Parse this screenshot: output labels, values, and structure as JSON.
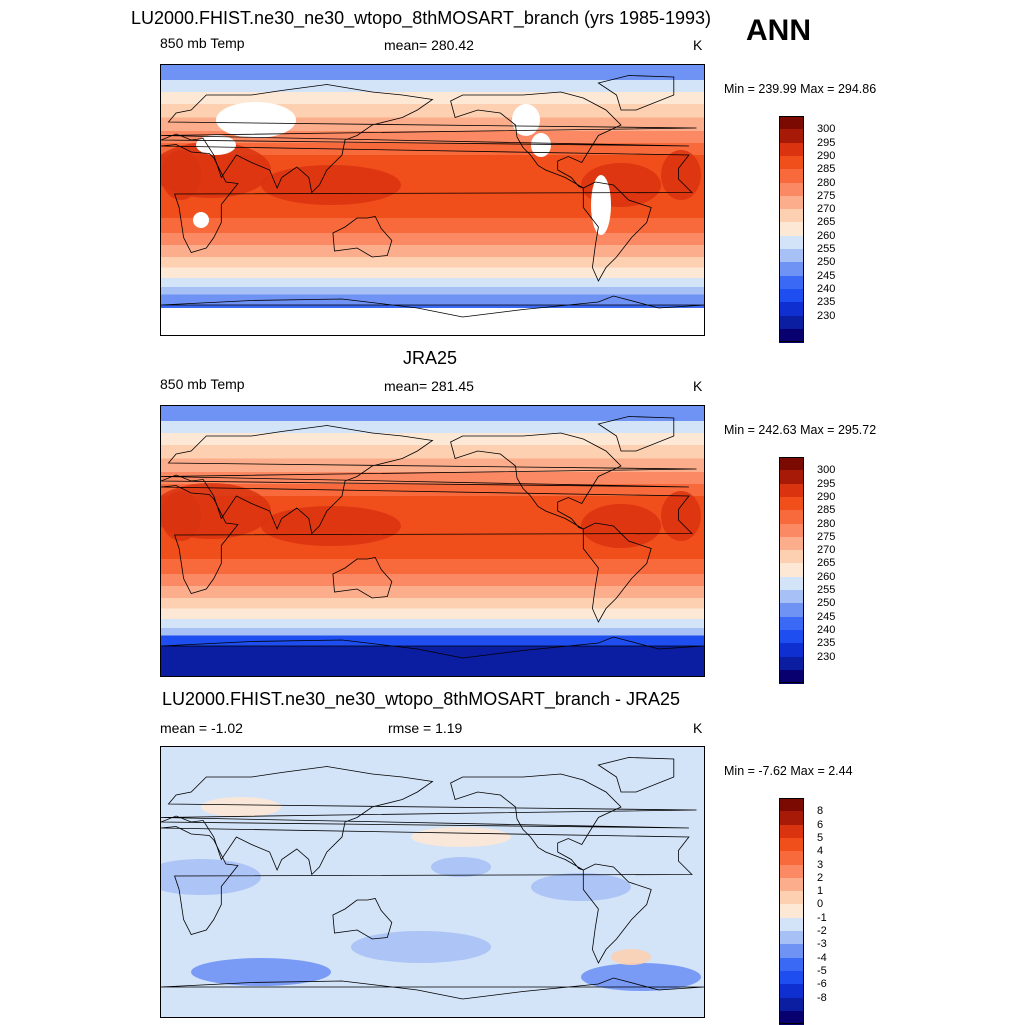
{
  "season": "ANN",
  "colors": {
    "abs_scale": [
      "#08006e",
      "#0b1da0",
      "#0f2fd0",
      "#1e4ef0",
      "#3a6af5",
      "#6f92f5",
      "#a7c0f5",
      "#d3e3f8",
      "#fde8d6",
      "#fcd0b1",
      "#fcae8c",
      "#fb8a64",
      "#f86a3c",
      "#f04e1a",
      "#d93310",
      "#a81a08",
      "#7b0a02"
    ],
    "diff_scale": [
      "#08006e",
      "#0b1da0",
      "#0f2fd0",
      "#1e4ef0",
      "#3a6af5",
      "#6f92f5",
      "#a7c0f5",
      "#d3e3f8",
      "#fde8d6",
      "#fcd0b1",
      "#fcae8c",
      "#fb8a64",
      "#f86a3c",
      "#f04e1a",
      "#d93310",
      "#a81a08",
      "#7b0a02"
    ],
    "missing": "#ffffff",
    "coast": "#000000"
  },
  "panels": [
    {
      "title": "LU2000.FHIST.ne30_ne30_wtopo_8thMOSART_branch (yrs 1985-1993)",
      "left_label": "850 mb Temp",
      "center_label": "mean= 280.42",
      "units": "K",
      "minmax": "Min = 239.99 Max = 294.86",
      "field": "model",
      "colorbar_labels": [
        "300",
        "295",
        "290",
        "285",
        "280",
        "275",
        "270",
        "265",
        "260",
        "255",
        "250",
        "245",
        "240",
        "235",
        "230"
      ]
    },
    {
      "title": "JRA25",
      "left_label": "850 mb Temp",
      "center_label": "mean= 281.45",
      "units": "K",
      "minmax": "Min = 242.63 Max = 295.72",
      "field": "obs",
      "colorbar_labels": [
        "300",
        "295",
        "290",
        "285",
        "280",
        "275",
        "270",
        "265",
        "260",
        "255",
        "250",
        "245",
        "240",
        "235",
        "230"
      ]
    },
    {
      "title": "LU2000.FHIST.ne30_ne30_wtopo_8thMOSART_branch - JRA25",
      "left_label": "mean =  -1.02",
      "center_label": "rmse =   1.19",
      "units": "K",
      "minmax": "Min =  -7.62 Max =   2.44",
      "field": "diff",
      "colorbar_labels": [
        "8",
        "6",
        "5",
        "4",
        "3",
        "2",
        "1",
        "0",
        "-1",
        "-2",
        "-3",
        "-4",
        "-5",
        "-6",
        "-8"
      ]
    }
  ]
}
